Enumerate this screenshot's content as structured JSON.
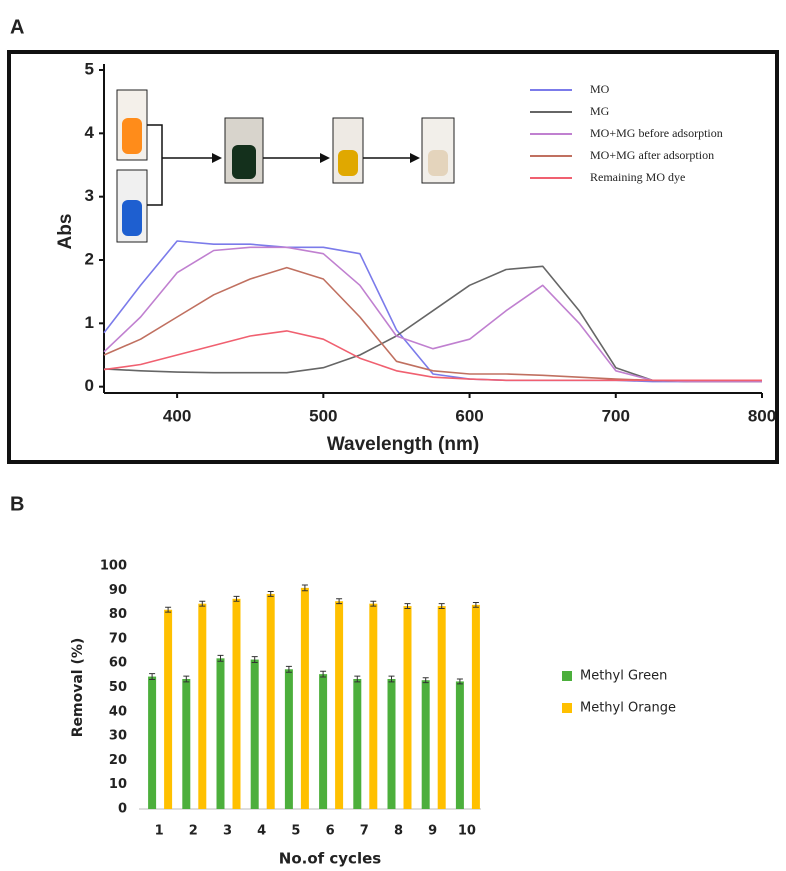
{
  "chart_data": [
    {
      "type": "line",
      "panel": "A",
      "xlabel": "Wavelength (nm)",
      "ylabel": "Abs",
      "x": [
        350,
        375,
        400,
        425,
        450,
        475,
        500,
        525,
        550,
        575,
        600,
        625,
        650,
        675,
        700,
        725,
        750,
        775,
        800
      ],
      "series": [
        {
          "name": "MO",
          "color": "#7b7bea",
          "values": [
            0.85,
            1.6,
            2.3,
            2.25,
            2.25,
            2.2,
            2.2,
            2.1,
            0.9,
            0.2,
            0.12,
            0.1,
            0.1,
            0.1,
            0.1,
            0.08,
            0.08,
            0.08,
            0.08
          ]
        },
        {
          "name": "MG",
          "color": "#666666",
          "values": [
            0.28,
            0.25,
            0.23,
            0.22,
            0.22,
            0.22,
            0.3,
            0.5,
            0.8,
            1.2,
            1.6,
            1.85,
            1.9,
            1.2,
            0.3,
            0.1,
            0.08,
            0.08,
            0.08
          ]
        },
        {
          "name": "MO+MG before adsorption",
          "color": "#c080d0",
          "values": [
            0.55,
            1.1,
            1.8,
            2.15,
            2.2,
            2.2,
            2.1,
            1.6,
            0.8,
            0.6,
            0.75,
            1.2,
            1.6,
            1.0,
            0.25,
            0.1,
            0.08,
            0.08,
            0.08
          ]
        },
        {
          "name": "MO+MG after adsorption",
          "color": "#c07060",
          "values": [
            0.5,
            0.75,
            1.1,
            1.45,
            1.7,
            1.88,
            1.7,
            1.1,
            0.4,
            0.25,
            0.2,
            0.2,
            0.18,
            0.15,
            0.12,
            0.1,
            0.1,
            0.1,
            0.1
          ]
        },
        {
          "name": "Remaining MO dye",
          "color": "#f06070",
          "values": [
            0.27,
            0.35,
            0.5,
            0.65,
            0.8,
            0.88,
            0.75,
            0.45,
            0.25,
            0.15,
            0.12,
            0.1,
            0.1,
            0.1,
            0.1,
            0.1,
            0.1,
            0.1,
            0.1
          ]
        }
      ],
      "xlim": [
        350,
        800
      ],
      "xticks": [
        400,
        500,
        600,
        700,
        800
      ],
      "ylim": [
        -0.1,
        5
      ],
      "yticks": [
        0,
        1,
        2,
        3,
        4,
        5
      ],
      "legend": "upper right"
    },
    {
      "type": "bar",
      "panel": "B",
      "xlabel": "No.of cycles",
      "ylabel": "Removal (%)",
      "categories": [
        "1",
        "2",
        "3",
        "4",
        "5",
        "6",
        "7",
        "8",
        "9",
        "10"
      ],
      "series": [
        {
          "name": "Methyl Green",
          "color": "#4caf3c",
          "values": [
            54.5,
            53.5,
            62,
            61.5,
            57.5,
            55.5,
            53.5,
            53.5,
            53,
            52.5
          ],
          "errors": [
            1.2,
            1.2,
            1.2,
            1.2,
            1.2,
            1.2,
            1.2,
            1.2,
            1.0,
            1.0
          ]
        },
        {
          "name": "Methyl Orange",
          "color": "#ffc000",
          "values": [
            82,
            84.5,
            86.5,
            88.5,
            91,
            85.5,
            84.5,
            83.5,
            83.5,
            84
          ],
          "errors": [
            1.0,
            1.0,
            1.0,
            1.0,
            1.2,
            1.0,
            1.0,
            1.0,
            1.0,
            1.0
          ]
        }
      ],
      "ylim": [
        0,
        100
      ],
      "yticks": [
        0,
        10,
        20,
        30,
        40,
        50,
        60,
        70,
        80,
        90,
        100
      ],
      "legend": "right"
    }
  ]
}
